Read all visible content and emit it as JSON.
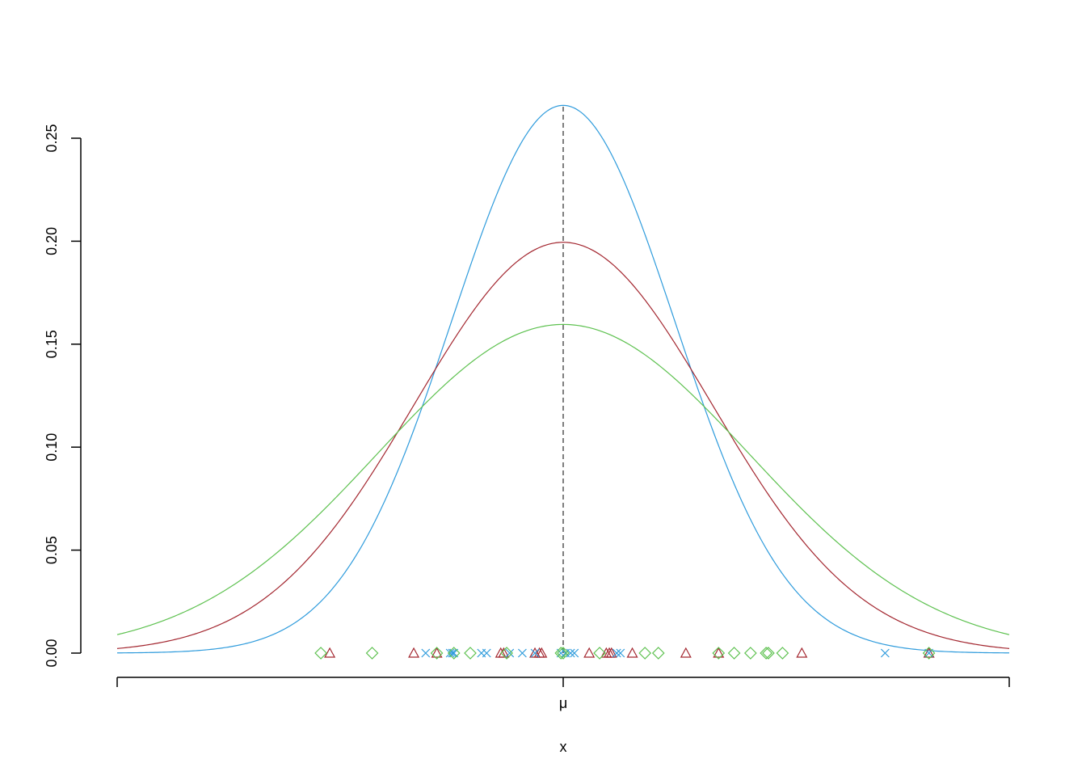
{
  "chart_data": {
    "type": "density",
    "xlabel": "x",
    "xlim": [
      -6,
      6
    ],
    "ylim": [
      0,
      0.25
    ],
    "xticks": [
      {
        "value": -6,
        "label": null
      },
      {
        "value": 0,
        "label": "μ"
      },
      {
        "value": 6,
        "label": null
      }
    ],
    "yticks": [
      {
        "value": 0,
        "label": "0.00"
      },
      {
        "value": 0.05,
        "label": "0.05"
      },
      {
        "value": 0.1,
        "label": "0.10"
      },
      {
        "value": 0.15,
        "label": "0.15"
      },
      {
        "value": 0.2,
        "label": "0.20"
      },
      {
        "value": 0.25,
        "label": "0.25"
      }
    ],
    "vline": 0,
    "curves": [
      {
        "color": "#2e9bdc",
        "mean": 0,
        "sd": 1.5
      },
      {
        "color": "#a3262f",
        "mean": 0,
        "sd": 2
      },
      {
        "color": "#5dc14f",
        "mean": 0,
        "sd": 2.5
      }
    ],
    "points": [
      {
        "color": "#a3262f",
        "shape": "triangle",
        "x": [
          -3.14,
          -2.01,
          -1.7,
          -0.84,
          -0.8,
          -0.38,
          -0.32,
          -0.29,
          0.35,
          0.58,
          0.62,
          0.65,
          0.93,
          1.65,
          2.09,
          3.21,
          4.92
        ],
        "y": [
          0,
          0,
          0,
          0,
          0,
          0,
          0,
          0,
          0,
          0,
          0,
          0,
          0,
          0,
          0,
          0,
          0
        ]
      },
      {
        "color": "#2e9bdc",
        "shape": "cross",
        "x": [
          -1.85,
          -1.52,
          -1.49,
          -1.47,
          -1.1,
          -1.03,
          -0.72,
          -0.55,
          -0.38,
          -0.03,
          0.03,
          0.1,
          0.15,
          0.72,
          0.77,
          4.33,
          4.92
        ],
        "y": [
          0,
          0,
          0,
          0,
          0,
          0,
          0,
          0,
          0,
          0,
          0,
          0,
          0,
          0,
          0,
          0,
          0
        ]
      },
      {
        "color": "#5dc14f",
        "shape": "diamond",
        "x": [
          -3.26,
          -2.57,
          -1.7,
          -1.47,
          -1.25,
          -0.76,
          -0.03,
          0,
          0.49,
          1.1,
          1.28,
          2.09,
          2.3,
          2.52,
          2.73,
          2.76,
          2.95,
          4.92
        ],
        "y": [
          0,
          0,
          0,
          0,
          0,
          0,
          0,
          0,
          0,
          0,
          0,
          0,
          0,
          0,
          0,
          0,
          0,
          0
        ]
      }
    ]
  }
}
